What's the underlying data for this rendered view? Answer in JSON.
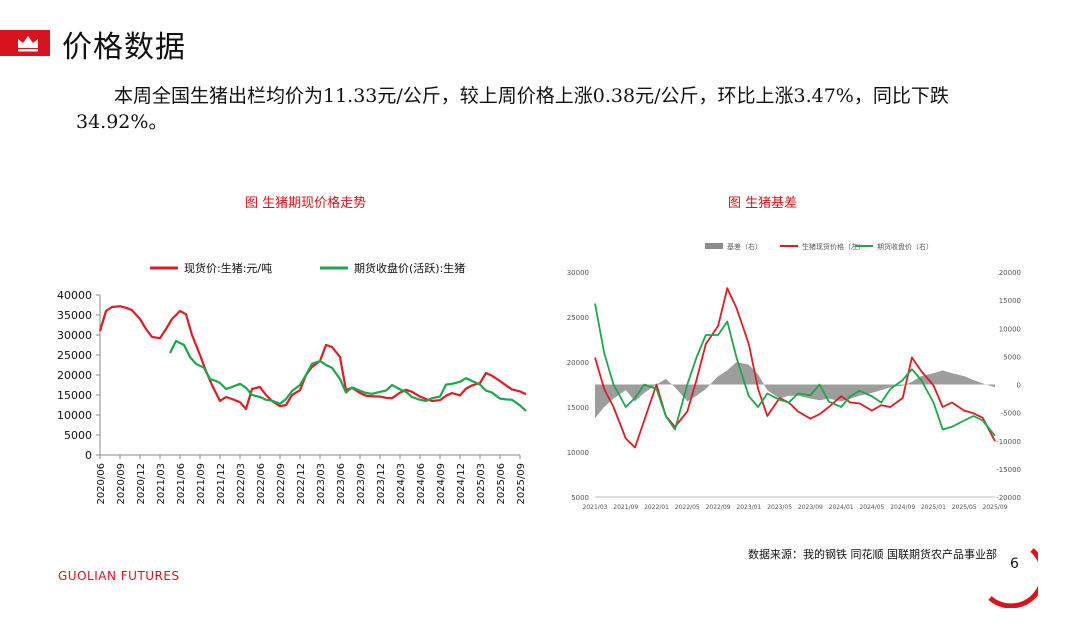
{
  "header": {
    "title": "价格数据",
    "icon": "crown-icon",
    "accent": "#d7141c"
  },
  "summary_text": "本周全国生猪出栏均价为11.33元/公斤，较上周价格上涨0.38元/公斤，环比上涨3.47%，同比下跌34.92%。",
  "footer": {
    "source": "数据来源：我的钢铁 同花顺 国联期货农产品事业部",
    "page_number": "6",
    "brand_bold": "GUOLIAN",
    "brand_rest": " FUTURES"
  },
  "chart_data": [
    {
      "type": "line",
      "title": "图  生猪期现价格走势",
      "legend_position": "top",
      "grid": false,
      "ylim": [
        0,
        40000
      ],
      "yticks": [
        "0",
        "5000",
        "10000",
        "15000",
        "20000",
        "25000",
        "30000",
        "35000",
        "40000"
      ],
      "xticks": [
        "2020/06",
        "2020/09",
        "2020/12",
        "2021/03",
        "2021/06",
        "2021/09",
        "2021/12",
        "2022/03",
        "2022/06",
        "2022/09",
        "2022/12",
        "2023/03",
        "2023/06",
        "2023/09",
        "2023/12",
        "2024/03",
        "2024/06",
        "2024/09",
        "2024/12",
        "2025/03",
        "2025/06",
        "2025/09"
      ],
      "series": [
        {
          "name": "现货价:生猪:元/吨",
          "color": "#e01b24",
          "x": [
            0,
            0.3,
            0.6,
            1,
            1.3,
            1.6,
            2,
            2.3,
            2.6,
            3,
            3.3,
            3.6,
            4,
            4.3,
            4.6,
            5,
            5.3,
            5.6,
            6,
            6.3,
            6.6,
            7,
            7.3,
            7.6,
            8,
            8.3,
            8.6,
            9,
            9.3,
            9.6,
            10,
            10.3,
            10.6,
            11,
            11.3,
            11.6,
            12,
            12.3,
            12.6,
            13,
            13.3,
            13.6,
            14,
            14.3,
            14.6,
            15,
            15.3,
            15.6,
            16,
            16.3,
            16.6,
            17,
            17.3,
            17.6,
            18,
            18.3,
            18.6,
            19,
            19.3,
            19.6,
            20,
            20.3,
            20.6,
            21,
            21.3
          ],
          "values": [
            31000,
            36000,
            37000,
            37200,
            36800,
            36200,
            34000,
            31500,
            29500,
            29200,
            31500,
            34000,
            36000,
            35200,
            30000,
            25000,
            21000,
            17500,
            13500,
            14500,
            14000,
            13200,
            11500,
            16500,
            17000,
            15000,
            13500,
            12200,
            12500,
            15000,
            16200,
            20000,
            22000,
            23500,
            27500,
            27000,
            24500,
            16200,
            16800,
            15500,
            14800,
            14700,
            14600,
            14300,
            14200,
            15600,
            16300,
            15800,
            14600,
            14000,
            13500,
            13700,
            14800,
            15500,
            14900,
            16600,
            17400,
            18000,
            20500,
            19800,
            18500,
            17400,
            16400,
            15900,
            15200
          ]
        },
        {
          "name": "期货收盘价(活跃):生猪",
          "color": "#19a84a",
          "x": [
            3.5,
            3.8,
            4.2,
            4.5,
            4.8,
            5.2,
            5.5,
            5.8,
            6,
            6.3,
            6.6,
            7,
            7.3,
            7.6,
            8,
            8.3,
            8.6,
            9,
            9.3,
            9.6,
            10,
            10.3,
            10.6,
            11,
            11.3,
            11.6,
            12,
            12.3,
            12.6,
            13,
            13.3,
            13.6,
            14,
            14.3,
            14.6,
            15,
            15.3,
            15.6,
            16,
            16.3,
            16.6,
            17,
            17.3,
            17.6,
            18,
            18.3,
            18.6,
            19,
            19.3,
            19.6,
            20,
            20.3,
            20.6,
            21,
            21.3
          ],
          "values": [
            25500,
            28500,
            27500,
            24500,
            22800,
            21800,
            19000,
            18500,
            18000,
            16500,
            17000,
            17800,
            16800,
            15000,
            14500,
            13800,
            13600,
            12800,
            14000,
            16000,
            17500,
            20000,
            22800,
            23500,
            22500,
            21800,
            19000,
            15600,
            16900,
            16100,
            15500,
            15300,
            15800,
            16100,
            17500,
            16400,
            15800,
            14500,
            13800,
            13500,
            14200,
            14600,
            17600,
            17800,
            18300,
            19200,
            18500,
            17600,
            16100,
            15600,
            14100,
            13900,
            13800,
            12400,
            11000
          ]
        }
      ]
    },
    {
      "type": "line",
      "title": "图  生猪基差",
      "legend_position": "top",
      "grid": false,
      "ylim": [
        5000,
        30000
      ],
      "y2lim": [
        -20000,
        20000
      ],
      "yticks": [
        "5000",
        "10000",
        "15000",
        "20000",
        "25000",
        "30000"
      ],
      "y2ticks": [
        "-20000",
        "-15000",
        "-10000",
        "-5000",
        "0",
        "5000",
        "10000",
        "15000",
        "20000"
      ],
      "xticks": [
        "2021/03",
        "2021/09",
        "2022/01",
        "2022/05",
        "2022/09",
        "2023/01",
        "2023/05",
        "2023/09",
        "2024/01",
        "2024/05",
        "2024/09",
        "2025/01",
        "2025/05",
        "2025/09"
      ],
      "series": [
        {
          "name": "基差（右）",
          "color": "#8c8c8c",
          "kind": "area",
          "axis": "right",
          "x": [
            0,
            0.3,
            0.6,
            1,
            1.3,
            1.6,
            2,
            2.3,
            2.6,
            3,
            3.3,
            3.6,
            4,
            4.3,
            4.6,
            5,
            5.3,
            5.6,
            6,
            6.3,
            6.6,
            7,
            7.3,
            7.6,
            8,
            8.3,
            8.6,
            9,
            9.3,
            9.6,
            10,
            10.3,
            10.6,
            11,
            11.3,
            11.6,
            12,
            12.3,
            12.6,
            13
          ],
          "values": [
            -6000,
            -4000,
            -2500,
            -1000,
            -3000,
            -1500,
            0,
            1000,
            -500,
            -3000,
            -2000,
            -800,
            1500,
            2500,
            4000,
            3500,
            1800,
            -1000,
            -2500,
            -2000,
            -2000,
            -2500,
            -2800,
            -2500,
            -3000,
            -2500,
            -2000,
            -1500,
            -1000,
            -500,
            -200,
            500,
            1500,
            2000,
            2500,
            2000,
            1500,
            800,
            200,
            -500
          ]
        },
        {
          "name": "生猪现货价格（左）",
          "color": "#e01b24",
          "axis": "left",
          "x": [
            0,
            0.3,
            0.6,
            1,
            1.3,
            1.6,
            2,
            2.3,
            2.6,
            3,
            3.3,
            3.6,
            4,
            4.3,
            4.6,
            5,
            5.3,
            5.6,
            6,
            6.3,
            6.6,
            7,
            7.3,
            7.6,
            8,
            8.3,
            8.6,
            9,
            9.3,
            9.6,
            10,
            10.3,
            10.6,
            11,
            11.3,
            11.6,
            12,
            12.3,
            12.6,
            13
          ],
          "values": [
            20500,
            17000,
            15000,
            11500,
            10500,
            13500,
            17500,
            14000,
            12800,
            14500,
            18000,
            22000,
            24000,
            28200,
            26000,
            22000,
            17000,
            14000,
            16000,
            15500,
            14500,
            13700,
            14200,
            15000,
            16200,
            15500,
            15400,
            14600,
            15200,
            15000,
            16000,
            20500,
            19000,
            17400,
            15000,
            15500,
            14600,
            14300,
            13800,
            11200
          ]
        },
        {
          "name": "期货收盘价（右）",
          "color": "#19a84a",
          "axis": "left",
          "x": [
            0,
            0.3,
            0.6,
            1,
            1.3,
            1.6,
            2,
            2.3,
            2.6,
            3,
            3.3,
            3.6,
            4,
            4.3,
            4.6,
            5,
            5.3,
            5.6,
            6,
            6.3,
            6.6,
            7,
            7.3,
            7.6,
            8,
            8.3,
            8.6,
            9,
            9.3,
            9.6,
            10,
            10.3,
            10.6,
            11,
            11.3,
            11.6,
            12,
            12.3,
            12.6,
            13
          ],
          "values": [
            26500,
            21000,
            17500,
            15000,
            16000,
            17500,
            17000,
            14000,
            12500,
            17500,
            20500,
            23000,
            23000,
            24500,
            20500,
            16200,
            15000,
            16500,
            15800,
            15500,
            16500,
            16300,
            17500,
            15600,
            15000,
            16200,
            16800,
            16200,
            15500,
            17000,
            18000,
            19200,
            18000,
            15500,
            12500,
            12800,
            13500,
            14000,
            13500,
            11800
          ]
        }
      ]
    }
  ]
}
